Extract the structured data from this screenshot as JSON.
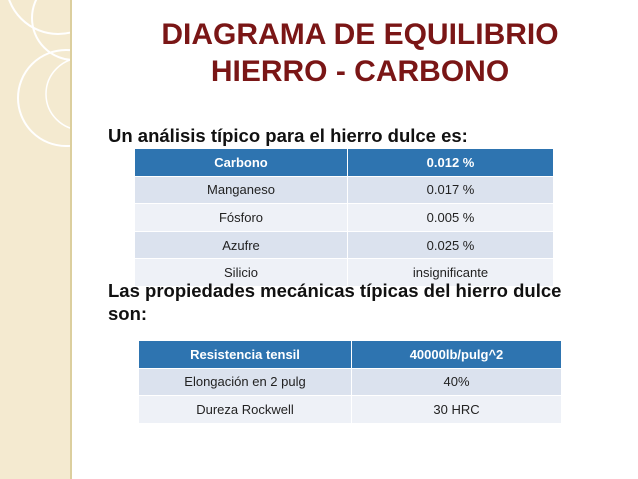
{
  "title": {
    "line1": "DIAGRAMA DE EQUILIBRIO",
    "line2": "HIERRO - CARBONO"
  },
  "intro1": "Un análisis típico para el hierro dulce es:",
  "table1": [
    [
      "Carbono",
      "0.012 %"
    ],
    [
      "Manganeso",
      "0.017 %"
    ],
    [
      "Fósforo",
      "0.005 %"
    ],
    [
      "Azufre",
      "0.025 %"
    ],
    [
      "Silicio",
      "insignificante"
    ]
  ],
  "intro2": "Las propiedades mecánicas típicas del hierro dulce son:",
  "table2": [
    [
      "Resistencia tensil",
      "40000lb/pulg^2"
    ],
    [
      "Elongación en 2 pulg",
      "40%"
    ],
    [
      "Dureza Rockwell",
      "30 HRC"
    ]
  ],
  "colors": {
    "title": "#7a1616",
    "table_header": "#2e74b0",
    "row_odd": "#dbe2ee",
    "row_even": "#eef1f7",
    "side_strip": "#f4ead0"
  }
}
